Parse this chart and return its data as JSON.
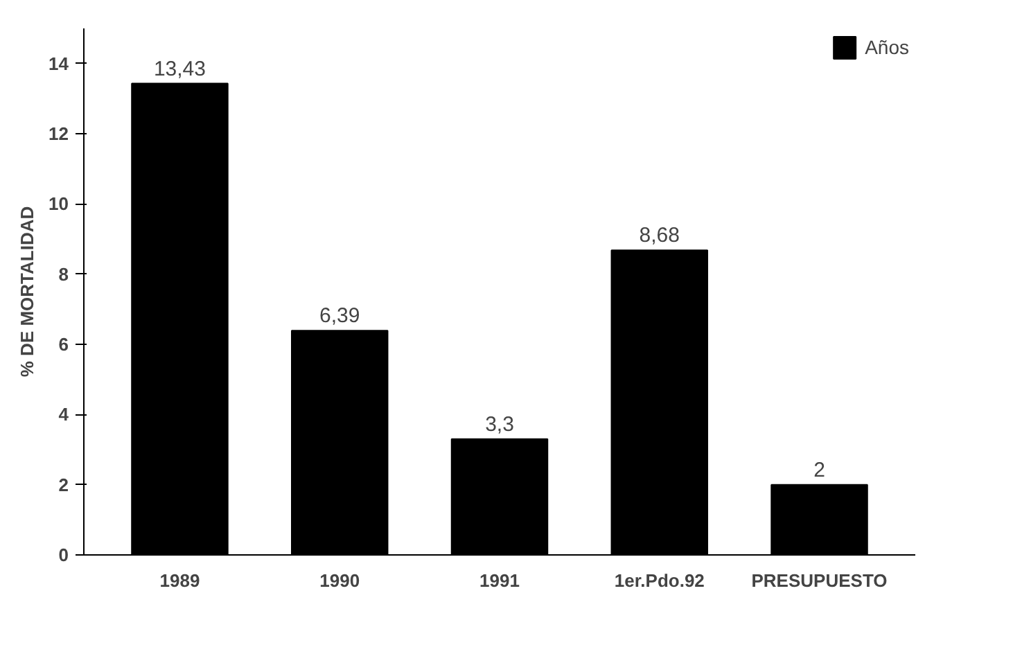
{
  "chart_data": {
    "type": "bar",
    "ylabel": "% DE MORTALIDAD",
    "categories": [
      "1989",
      "1990",
      "1991",
      "1er.Pdo.92",
      "PRESUPUESTO"
    ],
    "series": [
      {
        "name": "Años",
        "color": "#000000",
        "values": [
          13.43,
          6.39,
          3.3,
          8.68,
          2
        ],
        "value_labels": [
          "13,43",
          "6,39",
          "3,3",
          "8,68",
          "2"
        ]
      }
    ],
    "ylim": [
      0,
      15
    ],
    "yticks": [
      0,
      2,
      4,
      6,
      8,
      10,
      12,
      14
    ],
    "grid": false,
    "legend": "top right"
  }
}
